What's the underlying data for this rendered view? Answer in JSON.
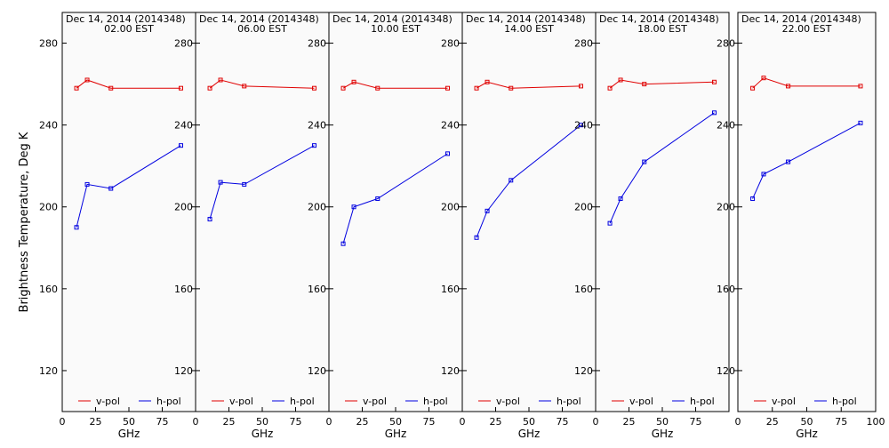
{
  "chart_data": {
    "type": "line",
    "ylabel": "Brightness Temperature, Deg K",
    "xlabel": "GHz",
    "xlim": [
      0,
      100
    ],
    "ylim": [
      100,
      295
    ],
    "x_ticks": [
      0,
      25,
      50,
      75,
      100
    ],
    "x_tick_labels": [
      "0",
      "25",
      "50",
      "75",
      "100"
    ],
    "y_ticks": [
      120,
      160,
      200,
      240,
      280
    ],
    "legend": [
      "v-pol",
      "h-pol"
    ],
    "legend_placement": "bottom",
    "colors": {
      "v-pol": "#e00000",
      "h-pol": "#0000e0",
      "plot_bg": "#fafafa"
    },
    "x": [
      10.7,
      18.7,
      36.5,
      89.0
    ],
    "panels": [
      {
        "title_line1": "Dec 14, 2014 (2014348)",
        "title_line2": "02.00 EST",
        "series": [
          {
            "name": "v-pol",
            "values": [
              258,
              262,
              258,
              258
            ]
          },
          {
            "name": "h-pol",
            "values": [
              190,
              211,
              209,
              230
            ]
          }
        ]
      },
      {
        "title_line1": "Dec 14, 2014 (2014348)",
        "title_line2": "06.00 EST",
        "series": [
          {
            "name": "v-pol",
            "values": [
              258,
              262,
              259,
              258
            ]
          },
          {
            "name": "h-pol",
            "values": [
              194,
              212,
              211,
              230
            ]
          }
        ]
      },
      {
        "title_line1": "Dec 14, 2014 (2014348)",
        "title_line2": "10.00 EST",
        "series": [
          {
            "name": "v-pol",
            "values": [
              258,
              261,
              258,
              258
            ]
          },
          {
            "name": "h-pol",
            "values": [
              182,
              200,
              204,
              226
            ]
          }
        ]
      },
      {
        "title_line1": "Dec 14, 2014 (2014348)",
        "title_line2": "14.00 EST",
        "series": [
          {
            "name": "v-pol",
            "values": [
              258,
              261,
              258,
              259
            ]
          },
          {
            "name": "h-pol",
            "values": [
              185,
              198,
              213,
              240
            ]
          }
        ]
      },
      {
        "title_line1": "Dec 14, 2014 (2014348)",
        "title_line2": "18.00 EST",
        "series": [
          {
            "name": "v-pol",
            "values": [
              258,
              262,
              260,
              261
            ]
          },
          {
            "name": "h-pol",
            "values": [
              192,
              204,
              222,
              246
            ]
          }
        ]
      },
      {
        "title_line1": "Dec 14, 2014 (2014348)",
        "title_line2": "22.00 EST",
        "series": [
          {
            "name": "v-pol",
            "values": [
              258,
              263,
              259,
              259
            ]
          },
          {
            "name": "h-pol",
            "values": [
              204,
              216,
              222,
              241
            ]
          }
        ]
      }
    ]
  }
}
